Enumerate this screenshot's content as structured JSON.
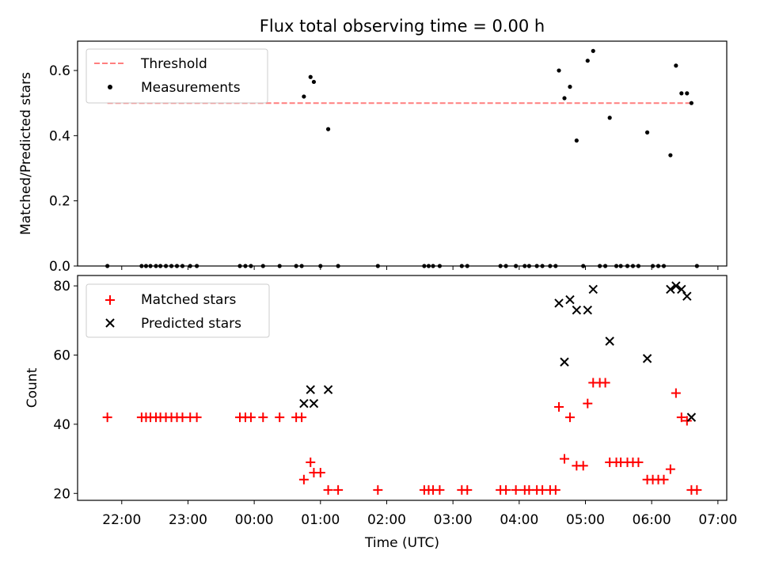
{
  "chart_data": [
    {
      "type": "scatter",
      "title": "Flux total observing time = 0.00 h",
      "xlabel": "",
      "ylabel": "Matched/Predicted stars",
      "ylim": [
        0,
        0.69
      ],
      "y_ticks": [
        "0.0",
        "0.2",
        "0.4",
        "0.6"
      ],
      "legend_position": "top-left",
      "threshold": {
        "name": "Threshold",
        "value": 0.5,
        "x_range": [
          "21:47",
          "06:35"
        ],
        "color": "#ff7f7f"
      },
      "series": [
        {
          "name": "Measurements",
          "color": "#000000",
          "points": [
            [
              "21:47",
              0
            ],
            [
              "22:18",
              0
            ],
            [
              "22:22",
              0
            ],
            [
              "22:26",
              0
            ],
            [
              "22:31",
              0
            ],
            [
              "22:35",
              0
            ],
            [
              "22:40",
              0
            ],
            [
              "22:45",
              0
            ],
            [
              "22:50",
              0
            ],
            [
              "22:55",
              0
            ],
            [
              "23:02",
              0
            ],
            [
              "23:08",
              0
            ],
            [
              "23:47",
              0
            ],
            [
              "23:52",
              0
            ],
            [
              "23:57",
              0
            ],
            [
              "00:08",
              0
            ],
            [
              "00:23",
              0
            ],
            [
              "00:38",
              0
            ],
            [
              "00:43",
              0
            ],
            [
              "00:45",
              0.52
            ],
            [
              "00:51",
              0.58
            ],
            [
              "00:54",
              0.565
            ],
            [
              "01:00",
              0
            ],
            [
              "01:07",
              0.42
            ],
            [
              "01:16",
              0
            ],
            [
              "01:52",
              0
            ],
            [
              "02:34",
              0
            ],
            [
              "02:38",
              0
            ],
            [
              "02:42",
              0
            ],
            [
              "02:48",
              0
            ],
            [
              "03:08",
              0
            ],
            [
              "03:13",
              0
            ],
            [
              "03:43",
              0
            ],
            [
              "03:48",
              0
            ],
            [
              "03:57",
              0
            ],
            [
              "04:05",
              0
            ],
            [
              "04:09",
              0
            ],
            [
              "04:16",
              0
            ],
            [
              "04:21",
              0
            ],
            [
              "04:28",
              0
            ],
            [
              "04:33",
              0
            ],
            [
              "04:36",
              0.6
            ],
            [
              "04:41",
              0.515
            ],
            [
              "04:46",
              0.55
            ],
            [
              "04:52",
              0.385
            ],
            [
              "04:58",
              0
            ],
            [
              "05:02",
              0.63
            ],
            [
              "05:07",
              0.66
            ],
            [
              "05:13",
              0
            ],
            [
              "05:18",
              0
            ],
            [
              "05:22",
              0.455
            ],
            [
              "05:28",
              0
            ],
            [
              "05:32",
              0
            ],
            [
              "05:38",
              0
            ],
            [
              "05:43",
              0
            ],
            [
              "05:48",
              0
            ],
            [
              "05:56",
              0.41
            ],
            [
              "06:01",
              0
            ],
            [
              "06:06",
              0
            ],
            [
              "06:11",
              0
            ],
            [
              "06:17",
              0.34
            ],
            [
              "06:22",
              0.615
            ],
            [
              "06:27",
              0.53
            ],
            [
              "06:32",
              0.53
            ],
            [
              "06:36",
              0.5
            ],
            [
              "06:41",
              0
            ]
          ]
        }
      ]
    },
    {
      "type": "scatter",
      "title": "",
      "xlabel": "Time (UTC)",
      "ylabel": "Count",
      "ylim": [
        18,
        83
      ],
      "y_ticks": [
        "20",
        "40",
        "60",
        "80"
      ],
      "x_ticks": [
        "22:00",
        "23:00",
        "00:00",
        "01:00",
        "02:00",
        "03:00",
        "04:00",
        "05:00",
        "06:00",
        "07:00"
      ],
      "legend_position": "top-left",
      "series": [
        {
          "name": "Matched stars",
          "color": "#ff0000",
          "marker": "+",
          "points": [
            [
              "21:47",
              42
            ],
            [
              "22:18",
              42
            ],
            [
              "22:22",
              42
            ],
            [
              "22:26",
              42
            ],
            [
              "22:31",
              42
            ],
            [
              "22:35",
              42
            ],
            [
              "22:40",
              42
            ],
            [
              "22:45",
              42
            ],
            [
              "22:50",
              42
            ],
            [
              "22:55",
              42
            ],
            [
              "23:02",
              42
            ],
            [
              "23:08",
              42
            ],
            [
              "23:47",
              42
            ],
            [
              "23:52",
              42
            ],
            [
              "23:57",
              42
            ],
            [
              "00:08",
              42
            ],
            [
              "00:23",
              42
            ],
            [
              "00:38",
              42
            ],
            [
              "00:43",
              42
            ],
            [
              "00:45",
              24
            ],
            [
              "00:51",
              29
            ],
            [
              "00:54",
              26
            ],
            [
              "01:00",
              26
            ],
            [
              "01:07",
              21
            ],
            [
              "01:16",
              21
            ],
            [
              "01:52",
              21
            ],
            [
              "02:34",
              21
            ],
            [
              "02:38",
              21
            ],
            [
              "02:42",
              21
            ],
            [
              "02:48",
              21
            ],
            [
              "03:08",
              21
            ],
            [
              "03:13",
              21
            ],
            [
              "03:43",
              21
            ],
            [
              "03:48",
              21
            ],
            [
              "03:57",
              21
            ],
            [
              "04:05",
              21
            ],
            [
              "04:09",
              21
            ],
            [
              "04:16",
              21
            ],
            [
              "04:21",
              21
            ],
            [
              "04:28",
              21
            ],
            [
              "04:33",
              21
            ],
            [
              "04:36",
              45
            ],
            [
              "04:41",
              30
            ],
            [
              "04:46",
              42
            ],
            [
              "04:52",
              28
            ],
            [
              "04:58",
              28
            ],
            [
              "05:02",
              46
            ],
            [
              "05:07",
              52
            ],
            [
              "05:13",
              52
            ],
            [
              "05:18",
              52
            ],
            [
              "05:22",
              29
            ],
            [
              "05:28",
              29
            ],
            [
              "05:32",
              29
            ],
            [
              "05:38",
              29
            ],
            [
              "05:43",
              29
            ],
            [
              "05:48",
              29
            ],
            [
              "05:56",
              24
            ],
            [
              "06:01",
              24
            ],
            [
              "06:06",
              24
            ],
            [
              "06:11",
              24
            ],
            [
              "06:17",
              27
            ],
            [
              "06:22",
              49
            ],
            [
              "06:27",
              42
            ],
            [
              "06:32",
              41
            ],
            [
              "06:36",
              21
            ],
            [
              "06:41",
              21
            ]
          ]
        },
        {
          "name": "Predicted stars",
          "color": "#000000",
          "marker": "x",
          "points": [
            [
              "00:45",
              46
            ],
            [
              "00:51",
              50
            ],
            [
              "00:54",
              46
            ],
            [
              "01:07",
              50
            ],
            [
              "04:36",
              75
            ],
            [
              "04:41",
              58
            ],
            [
              "04:46",
              76
            ],
            [
              "04:52",
              73
            ],
            [
              "05:02",
              73
            ],
            [
              "05:07",
              79
            ],
            [
              "05:22",
              64
            ],
            [
              "05:56",
              59
            ],
            [
              "06:17",
              79
            ],
            [
              "06:22",
              80
            ],
            [
              "06:27",
              79
            ],
            [
              "06:32",
              77
            ],
            [
              "06:36",
              42
            ]
          ]
        }
      ]
    }
  ]
}
